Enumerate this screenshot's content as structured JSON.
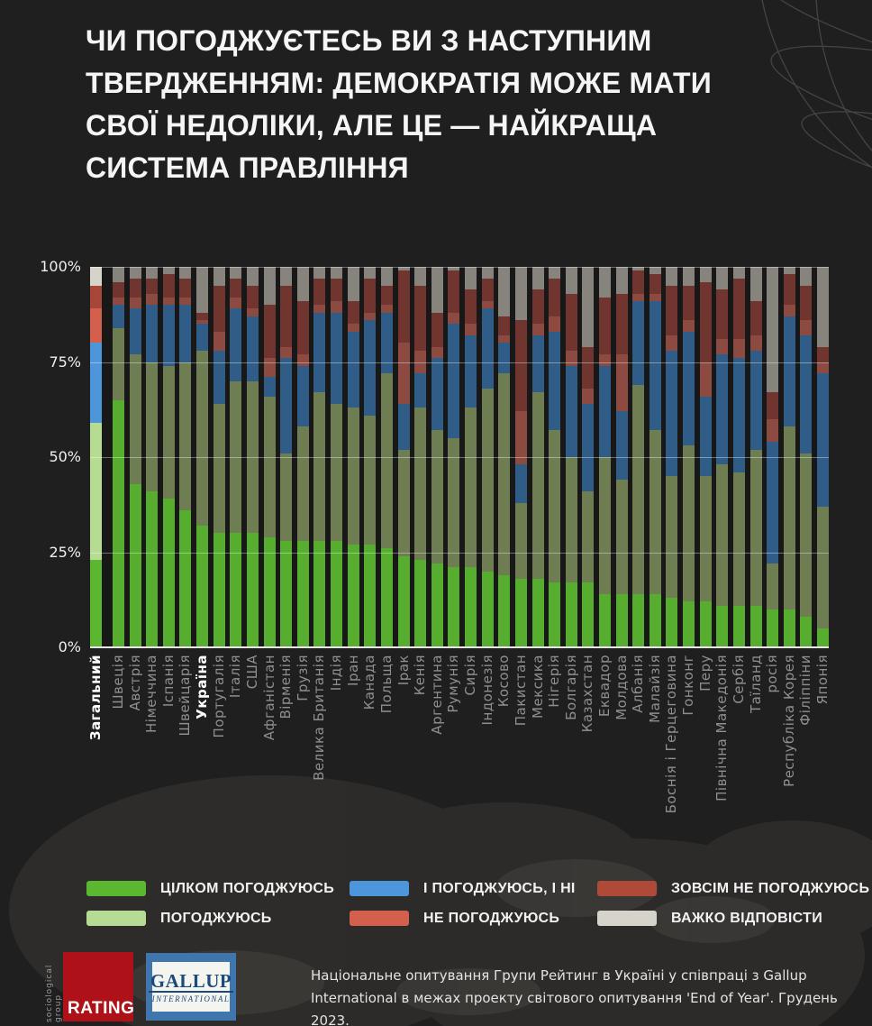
{
  "title": "ЧИ ПОГОДЖУЄТЕСЬ ВИ З НАСТУПНИМ ТВЕРДЖЕННЯМ:  ДЕМОКРАТІЯ МОЖЕ МАТИ СВОЇ НЕДОЛІКИ, АЛЕ ЦЕ — НАЙКРАЩА СИСТЕМА ПРАВЛІННЯ",
  "y_axis": {
    "ticks": [
      "100%",
      "75%",
      "50%",
      "25%",
      "0%"
    ],
    "values": [
      100,
      75,
      50,
      25,
      0
    ]
  },
  "chart_data": {
    "type": "bar",
    "subtype": "stacked-100-percent",
    "unit": "%",
    "ylim": [
      0,
      100
    ],
    "gridlines": [
      0,
      25,
      50,
      75,
      100
    ],
    "legend_position": "bottom",
    "highlighted": [
      "Загальний",
      "Україна"
    ],
    "categories": [
      "Загальний",
      "Швеція",
      "Австрія",
      "Німеччина",
      "Іспанія",
      "Швейцарія",
      "Україна",
      "Португалія",
      "Італія",
      "США",
      "Афганістан",
      "Вірменія",
      "Грузія",
      "Велика Британія",
      "Індія",
      "Іран",
      "Канада",
      "Польща",
      "Ірак",
      "Кенія",
      "Аргентина",
      "Румунія",
      "Сирія",
      "Індонезія",
      "Косово",
      "Пакистан",
      "Мексика",
      "Нігерія",
      "Болгарія",
      "Казахстан",
      "Еквадор",
      "Молдова",
      "Албанія",
      "Малайзія",
      "Боснія і Герцеговина",
      "Гонконг",
      "Перу",
      "Північна Македонія",
      "Сербія",
      "Таїланд",
      "росія",
      "Республіка Корея",
      "Філіппіни",
      "Японія"
    ],
    "series": [
      {
        "name": "ЦІЛКОМ ПОГОДЖУЮСЬ",
        "color": "#5cb730",
        "color_dimmed": "#56ad2e",
        "values": [
          23,
          65,
          43,
          41,
          39,
          36,
          32,
          30,
          30,
          30,
          29,
          28,
          28,
          28,
          28,
          27,
          27,
          26,
          24,
          23,
          22,
          21,
          21,
          20,
          19,
          18,
          18,
          17,
          17,
          17,
          14,
          14,
          14,
          14,
          13,
          12,
          12,
          11,
          11,
          11,
          10,
          10,
          8,
          5
        ]
      },
      {
        "name": "ПОГОДЖУЮСЬ",
        "color": "#b5dc92",
        "color_dimmed": "#6e7d52",
        "values": [
          36,
          19,
          34,
          34,
          35,
          39,
          46,
          34,
          40,
          40,
          37,
          23,
          30,
          39,
          36,
          36,
          34,
          46,
          28,
          40,
          35,
          34,
          42,
          48,
          53,
          20,
          49,
          40,
          33,
          24,
          36,
          30,
          55,
          43,
          32,
          41,
          33,
          37,
          35,
          41,
          12,
          48,
          43,
          32
        ]
      },
      {
        "name": "І ПОГОДЖУЮСЬ, І НІ",
        "color": "#4d96dc",
        "color_dimmed": "#2f5d88",
        "values": [
          21,
          6,
          12,
          15,
          16,
          15,
          7,
          14,
          19,
          17,
          5,
          25,
          16,
          21,
          24,
          20,
          25,
          16,
          12,
          9,
          19,
          30,
          19,
          21,
          8,
          10,
          15,
          26,
          24,
          23,
          24,
          18,
          22,
          34,
          33,
          30,
          21,
          29,
          30,
          26,
          32,
          29,
          31,
          35
        ]
      },
      {
        "name": "НЕ ПОГОДЖУЮСЬ",
        "color": "#d3604d",
        "color_dimmed": "#8c4a40",
        "values": [
          9,
          2,
          3,
          3,
          2,
          2,
          1,
          5,
          3,
          2,
          5,
          3,
          3,
          2,
          3,
          2,
          2,
          2,
          16,
          6,
          3,
          3,
          3,
          2,
          2,
          14,
          3,
          4,
          4,
          4,
          3,
          15,
          2,
          2,
          4,
          3,
          9,
          4,
          5,
          4,
          6,
          3,
          4,
          3
        ]
      },
      {
        "name": "ЗОВСІМ НЕ ПОГОДЖУЮСЬ",
        "color": "#a8463a",
        "color_dimmed": "#6f352e",
        "values": [
          6,
          4,
          5,
          4,
          6,
          5,
          2,
          12,
          5,
          6,
          14,
          16,
          14,
          7,
          6,
          6,
          9,
          5,
          19,
          17,
          9,
          11,
          9,
          6,
          5,
          24,
          9,
          10,
          15,
          11,
          15,
          16,
          6,
          5,
          13,
          9,
          21,
          13,
          16,
          9,
          7,
          8,
          9,
          4
        ]
      },
      {
        "name": "ВАЖКО ВІДПОВІСТИ",
        "color": "#d6d3cb",
        "color_dimmed": "#87847e",
        "values": [
          5,
          4,
          3,
          3,
          2,
          3,
          12,
          5,
          3,
          5,
          10,
          5,
          9,
          3,
          3,
          9,
          3,
          5,
          1,
          5,
          12,
          1,
          6,
          3,
          13,
          14,
          6,
          3,
          7,
          21,
          8,
          7,
          1,
          2,
          5,
          5,
          4,
          6,
          3,
          9,
          33,
          2,
          5,
          21
        ]
      }
    ]
  },
  "legend": {
    "items": [
      {
        "label": "ЦІЛКОМ ПОГОДЖУЮСЬ",
        "color": "#5cb730"
      },
      {
        "label": "ПОГОДЖУЮСЬ",
        "color": "#b5dc92"
      },
      {
        "label": "І ПОГОДЖУЮСЬ, І НІ",
        "color": "#4d96dc"
      },
      {
        "label": "НЕ ПОГОДЖУЮСЬ",
        "color": "#d3604d"
      },
      {
        "label": "ЗОВСІМ НЕ ПОГОДЖУЮСЬ",
        "color": "#b04a38"
      },
      {
        "label": "ВАЖКО ВІДПОВІСТИ",
        "color": "#d6d3cb"
      }
    ]
  },
  "footer": {
    "rating_logo": {
      "vertical_text": "sociological group",
      "text": "RATING",
      "color": "#ae1117"
    },
    "gallup_logo": {
      "line1": "GALLUP",
      "line2": "INTERNATIONAL"
    },
    "source_text": "Національне опитування Групи Рейтинг в Україні у співпраці з Gallup International в межах проекту світового опитування 'End of Year'. Грудень 2023."
  }
}
